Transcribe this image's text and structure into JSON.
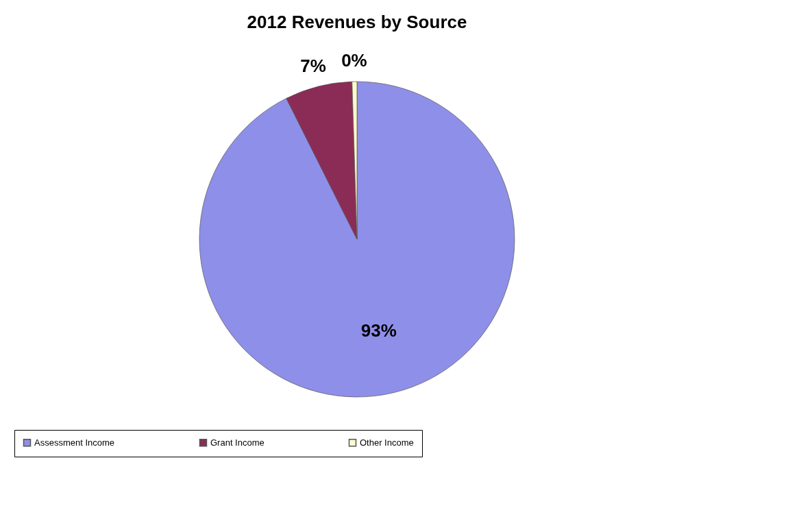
{
  "chart_data": {
    "type": "pie",
    "title": "2012 Revenues by Source",
    "categories": [
      "Assessment Income",
      "Grant Income",
      "Other Income"
    ],
    "values": [
      92.6,
      6.9,
      0.5
    ],
    "colors": [
      "#8e8fe8",
      "#8b2c56",
      "#fffacd"
    ],
    "value_labels": [
      "93%",
      "7%",
      "0%"
    ],
    "legend": "bottom"
  }
}
